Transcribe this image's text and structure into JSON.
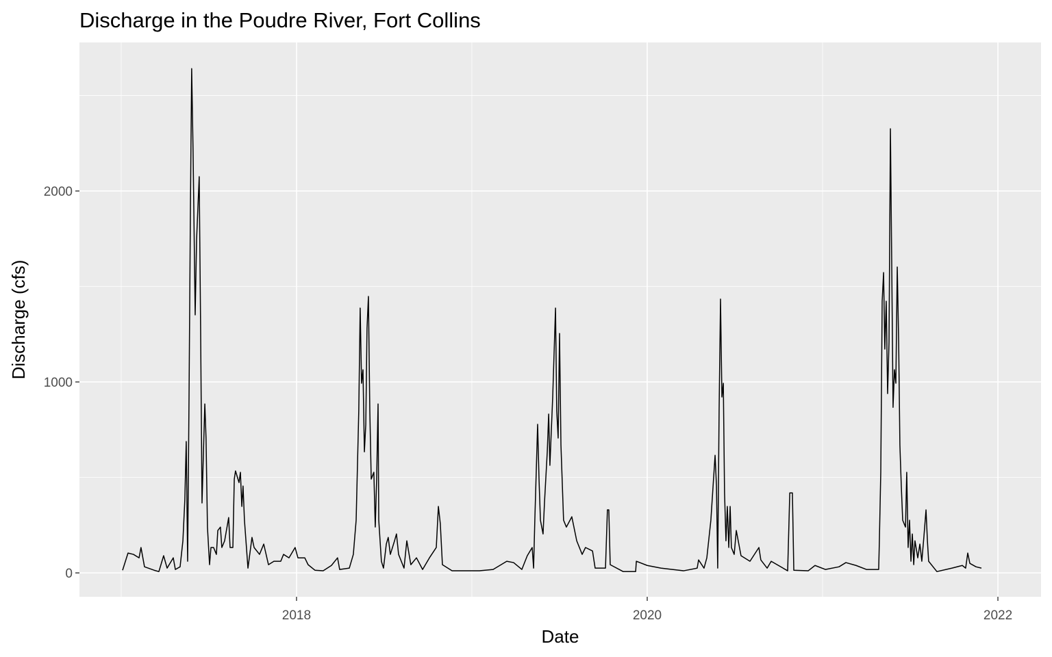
{
  "chart_data": {
    "type": "line",
    "title": "Discharge in the Poudre River, Fort Collins",
    "x_label": "Date",
    "y_label": "Discharge (cfs)",
    "color": "#000000",
    "grid": true,
    "xlim": [
      2016.762,
      2022.246
    ],
    "ylim": [
      -125,
      2778
    ],
    "xticks": [
      2018,
      2020,
      2022
    ],
    "yticks": [
      0,
      1000,
      2000
    ],
    "x_minor_ticks": [
      2017,
      2019,
      2021
    ],
    "y_minor_ticks": [
      500,
      1500,
      2500
    ],
    "x": [
      2017.008,
      2017.039,
      2017.07,
      2017.102,
      2017.113,
      2017.133,
      2017.188,
      2017.215,
      2017.242,
      2017.262,
      2017.297,
      2017.309,
      2017.336,
      2017.352,
      2017.363,
      2017.371,
      2017.379,
      2017.387,
      2017.395,
      2017.402,
      2017.41,
      2017.422,
      2017.43,
      2017.445,
      2017.453,
      2017.461,
      2017.477,
      2017.484,
      2017.492,
      2017.504,
      2017.512,
      2017.527,
      2017.543,
      2017.551,
      2017.566,
      2017.574,
      2017.59,
      2017.613,
      2017.621,
      2017.637,
      2017.645,
      2017.652,
      2017.672,
      2017.68,
      2017.688,
      2017.695,
      2017.703,
      2017.723,
      2017.746,
      2017.758,
      2017.789,
      2017.813,
      2017.84,
      2017.871,
      2017.91,
      2017.926,
      2017.957,
      2017.992,
      2018.008,
      2018.047,
      2018.066,
      2018.105,
      2018.152,
      2018.199,
      2018.234,
      2018.246,
      2018.301,
      2018.324,
      2018.34,
      2018.355,
      2018.363,
      2018.371,
      2018.379,
      2018.387,
      2018.395,
      2018.402,
      2018.41,
      2018.418,
      2018.426,
      2018.441,
      2018.449,
      2018.457,
      2018.465,
      2018.469,
      2018.484,
      2018.496,
      2018.512,
      2018.523,
      2018.535,
      2018.559,
      2018.57,
      2018.582,
      2018.613,
      2018.629,
      2018.652,
      2018.684,
      2018.719,
      2018.758,
      2018.797,
      2018.809,
      2018.82,
      2018.832,
      2018.887,
      2019.043,
      2019.121,
      2019.199,
      2019.238,
      2019.285,
      2019.316,
      2019.344,
      2019.352,
      2019.359,
      2019.375,
      2019.383,
      2019.391,
      2019.406,
      2019.414,
      2019.43,
      2019.438,
      2019.445,
      2019.461,
      2019.477,
      2019.484,
      2019.492,
      2019.5,
      2019.508,
      2019.523,
      2019.539,
      2019.57,
      2019.598,
      2019.629,
      2019.648,
      2019.688,
      2019.703,
      2019.762,
      2019.773,
      2019.781,
      2019.789,
      2019.863,
      2019.934,
      2019.938,
      2020.0,
      2020.078,
      2020.207,
      2020.285,
      2020.293,
      2020.324,
      2020.34,
      2020.363,
      2020.387,
      2020.395,
      2020.402,
      2020.41,
      2020.418,
      2020.426,
      2020.434,
      2020.441,
      2020.449,
      2020.457,
      2020.465,
      2020.473,
      2020.48,
      2020.496,
      2020.508,
      2020.535,
      2020.586,
      2020.637,
      2020.648,
      2020.684,
      2020.707,
      2020.801,
      2020.813,
      2020.828,
      2020.836,
      2020.918,
      2020.957,
      2021.016,
      2021.094,
      2021.133,
      2021.191,
      2021.25,
      2021.32,
      2021.324,
      2021.332,
      2021.34,
      2021.348,
      2021.355,
      2021.363,
      2021.371,
      2021.379,
      2021.387,
      2021.395,
      2021.402,
      2021.41,
      2021.418,
      2021.426,
      2021.434,
      2021.441,
      2021.449,
      2021.457,
      2021.473,
      2021.48,
      2021.488,
      2021.496,
      2021.504,
      2021.512,
      2021.52,
      2021.527,
      2021.543,
      2021.555,
      2021.566,
      2021.578,
      2021.59,
      2021.598,
      2021.605,
      2021.652,
      2021.738,
      2021.797,
      2021.816,
      2021.828,
      2021.84,
      2021.875,
      2021.906
    ],
    "values": [
      14,
      104,
      97,
      79,
      133,
      32,
      14,
      7,
      90,
      25,
      79,
      18,
      32,
      168,
      383,
      688,
      61,
      921,
      1925,
      2641,
      2211,
      1351,
      1745,
      2075,
      1280,
      366,
      885,
      706,
      240,
      43,
      133,
      133,
      97,
      222,
      240,
      133,
      168,
      290,
      133,
      133,
      491,
      534,
      473,
      527,
      348,
      455,
      276,
      25,
      186,
      133,
      97,
      151,
      43,
      61,
      61,
      97,
      79,
      133,
      79,
      79,
      43,
      14,
      11,
      39,
      79,
      18,
      25,
      97,
      276,
      849,
      1387,
      993,
      1064,
      634,
      778,
      1280,
      1448,
      849,
      491,
      527,
      240,
      491,
      885,
      276,
      61,
      25,
      151,
      186,
      97,
      168,
      204,
      97,
      25,
      168,
      43,
      79,
      18,
      79,
      133,
      348,
      258,
      43,
      11,
      11,
      18,
      61,
      54,
      18,
      90,
      133,
      25,
      276,
      778,
      491,
      276,
      204,
      366,
      634,
      832,
      563,
      921,
      1387,
      849,
      706,
      1254,
      670,
      276,
      240,
      294,
      168,
      97,
      133,
      115,
      25,
      25,
      330,
      330,
      43,
      7,
      7,
      61,
      39,
      25,
      11,
      25,
      68,
      25,
      79,
      276,
      616,
      455,
      25,
      849,
      1434,
      921,
      993,
      419,
      168,
      348,
      133,
      348,
      133,
      97,
      222,
      90,
      61,
      133,
      68,
      25,
      61,
      11,
      419,
      419,
      14,
      11,
      39,
      18,
      32,
      54,
      39,
      18,
      18,
      168,
      527,
      1423,
      1573,
      1172,
      1423,
      939,
      1208,
      2326,
      1566,
      867,
      1064,
      993,
      1602,
      1208,
      670,
      455,
      276,
      240,
      527,
      133,
      276,
      61,
      204,
      43,
      168,
      79,
      151,
      61,
      190,
      330,
      168,
      61,
      7,
      25,
      39,
      25,
      104,
      50,
      32,
      25
    ]
  }
}
